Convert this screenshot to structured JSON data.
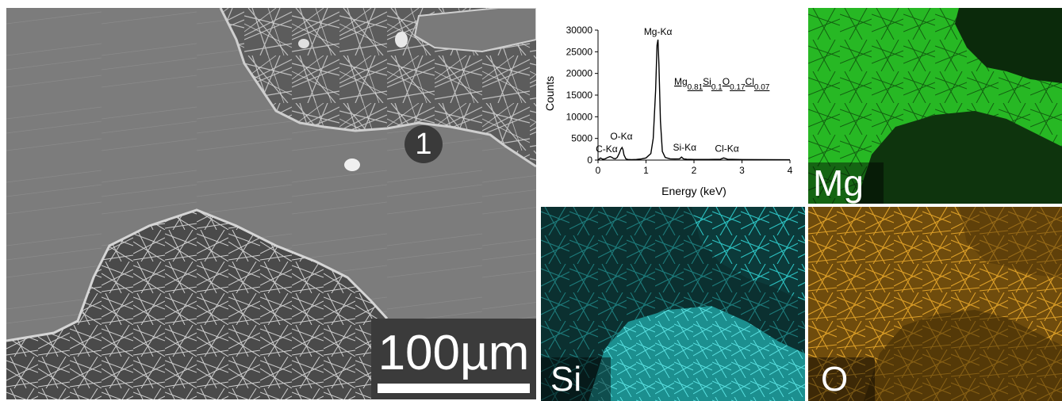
{
  "sem_image": {
    "marker_label": "1",
    "scale_bar_label": "100µm"
  },
  "eds_maps": {
    "mg_label": "Mg",
    "si_label": "Si",
    "o_label": "O",
    "colors": {
      "mg": "#22c21f",
      "si": "#2fd0d0",
      "o": "#e0a020"
    }
  },
  "chart_data": {
    "type": "line",
    "title": "",
    "xlabel": "Energy (keV)",
    "ylabel": "Counts",
    "xlim": [
      0,
      4
    ],
    "ylim": [
      0,
      30000
    ],
    "x_ticks": [
      "0",
      "1",
      "2",
      "3",
      "4"
    ],
    "y_ticks": [
      "0",
      "5000",
      "10000",
      "15000",
      "20000",
      "25000",
      "30000"
    ],
    "series": [
      {
        "x": [
          0.0,
          0.05,
          0.1,
          0.15,
          0.2,
          0.25,
          0.28,
          0.32,
          0.36,
          0.4,
          0.44,
          0.48,
          0.5,
          0.52,
          0.54,
          0.58,
          0.62,
          0.7,
          0.8,
          0.9,
          1.0,
          1.1,
          1.15,
          1.2,
          1.23,
          1.25,
          1.27,
          1.3,
          1.34,
          1.4,
          1.5,
          1.6,
          1.7,
          1.74,
          1.78,
          1.85,
          2.0,
          2.3,
          2.55,
          2.62,
          2.7,
          3.0,
          3.5,
          4.0
        ],
        "y": [
          0,
          500,
          200,
          300,
          600,
          800,
          700,
          400,
          300,
          600,
          1500,
          2600,
          2900,
          2400,
          1200,
          300,
          150,
          100,
          150,
          250,
          500,
          1500,
          5000,
          16000,
          26500,
          27800,
          22000,
          9000,
          2000,
          600,
          300,
          250,
          300,
          700,
          300,
          200,
          150,
          150,
          200,
          500,
          200,
          120,
          100,
          80
        ]
      }
    ],
    "annotations": [
      {
        "text": "Mg-Kα",
        "x": 1.25,
        "y": 27800
      },
      {
        "text": "O-Kα",
        "x": 0.52,
        "y": 2900
      },
      {
        "text": "C-Kα",
        "x": 0.28,
        "y": 700
      },
      {
        "text": "Si-Kα",
        "x": 1.74,
        "y": 700
      },
      {
        "text": "Cl-Kα",
        "x": 2.62,
        "y": 500
      }
    ],
    "composition_label": "Mg0.81Si0.1O0.17Cl0.07",
    "grid": false,
    "legend": "none"
  }
}
